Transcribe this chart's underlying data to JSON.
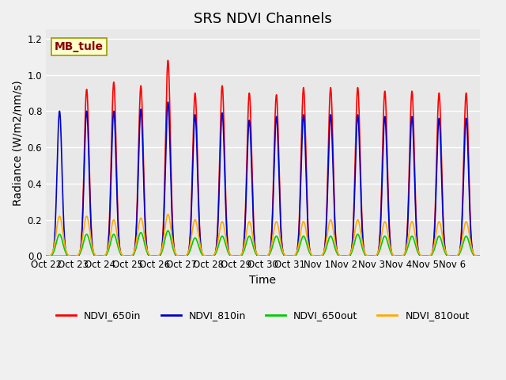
{
  "title": "SRS NDVI Channels",
  "xlabel": "Time",
  "ylabel": "Radiance (W/m2/nm/s)",
  "annotation": "MB_tule",
  "ylim": [
    0,
    1.25
  ],
  "background_color": "#e8e8e8",
  "legend_labels": [
    "NDVI_650in",
    "NDVI_810in",
    "NDVI_650out",
    "NDVI_810out"
  ],
  "legend_colors": [
    "#ff0000",
    "#0000cc",
    "#00cc00",
    "#ffaa00"
  ],
  "num_days": 16,
  "peaks_650in": [
    0.0,
    0.92,
    0.96,
    0.94,
    1.08,
    0.9,
    0.94,
    0.9,
    0.89,
    0.93,
    0.93,
    0.93,
    0.91,
    0.91,
    0.9,
    0.9
  ],
  "peaks_810in": [
    0.8,
    0.8,
    0.8,
    0.81,
    0.85,
    0.78,
    0.79,
    0.75,
    0.77,
    0.78,
    0.78,
    0.78,
    0.77,
    0.77,
    0.76,
    0.76
  ],
  "peaks_650out": [
    0.12,
    0.12,
    0.12,
    0.13,
    0.14,
    0.1,
    0.11,
    0.11,
    0.11,
    0.11,
    0.11,
    0.12,
    0.11,
    0.11,
    0.11,
    0.11
  ],
  "peaks_810out": [
    0.22,
    0.22,
    0.2,
    0.21,
    0.23,
    0.2,
    0.19,
    0.19,
    0.19,
    0.19,
    0.2,
    0.2,
    0.19,
    0.19,
    0.19,
    0.19
  ],
  "tick_labels": [
    "Oct 22",
    "Oct 23",
    "Oct 24",
    "Oct 25",
    "Oct 26",
    "Oct 27",
    "Oct 28",
    "Oct 29",
    "Oct 30",
    "Oct 31",
    "Nov 1",
    "Nov 2",
    "Nov 3",
    "Nov 4",
    "Nov 5",
    "Nov 6"
  ],
  "grid_color": "#ffffff",
  "title_fontsize": 13,
  "axis_fontsize": 10,
  "tick_fontsize": 8.5
}
